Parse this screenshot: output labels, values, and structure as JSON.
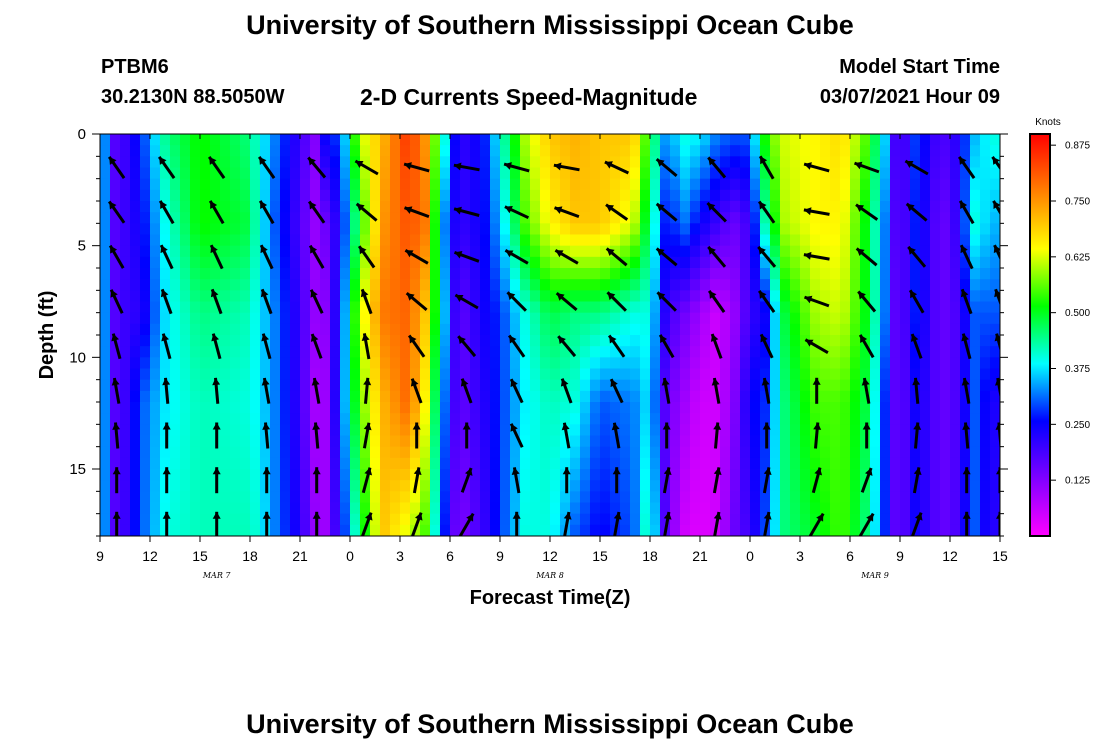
{
  "header": {
    "title_top": "University of Southern Mississippi Ocean Cube",
    "station_id": "PTBM6",
    "coords": "30.2130N 88.5050W",
    "plot_title": "2-D Currents Speed-Magnitude",
    "model_label": "Model Start Time",
    "model_time": "03/07/2021 Hour 09",
    "title_bottom": "University of Southern Mississippi Ocean Cube"
  },
  "chart_data": {
    "type": "heatmap",
    "title": "2-D Currents Speed-Magnitude",
    "xlabel": "Forecast Time(Z)",
    "ylabel": "Depth (ft)",
    "x_tick_labels": [
      "9",
      "12",
      "15",
      "18",
      "21",
      "0",
      "3",
      "6",
      "9",
      "12",
      "15",
      "18",
      "21",
      "0",
      "3",
      "6",
      "9",
      "12",
      "15"
    ],
    "x_range_hours": [
      0,
      54
    ],
    "date_labels": [
      {
        "text": "MAR  7",
        "hour": 7
      },
      {
        "text": "MAR  8",
        "hour": 27
      },
      {
        "text": "MAR  9",
        "hour": 46.5
      }
    ],
    "y_ticks": [
      0,
      5,
      10,
      15
    ],
    "ylim": [
      0,
      18
    ],
    "y_inverted": true,
    "colorbar": {
      "unit": "Knots",
      "range": [
        0,
        0.9
      ],
      "tick_labels": [
        "0.125",
        "0.250",
        "0.375",
        "0.500",
        "0.625",
        "0.750",
        "0.875"
      ],
      "colors": [
        "#ff00ff",
        "#8000ff",
        "#0000ff",
        "#00ffff",
        "#00ff00",
        "#ffff00",
        "#ff8000",
        "#ff0000"
      ]
    },
    "speed_field": {
      "hour_keys": [
        0,
        1,
        1.5,
        2.5,
        4,
        6,
        9,
        9.5,
        10.5,
        12,
        13,
        13.5,
        14.5,
        15.5,
        17,
        18.5,
        19.5,
        20.5,
        21.5,
        23,
        24,
        25.5,
        27,
        28.5,
        30,
        32,
        33,
        34,
        35,
        36,
        37,
        38,
        39,
        40,
        41,
        43,
        44.5,
        46,
        47,
        47.5,
        48,
        49,
        50,
        51,
        52.5,
        53.5,
        54
      ],
      "depth_keys": [
        0,
        4,
        8,
        12,
        18
      ],
      "grid": [
        [
          0.4,
          0.4,
          0.4,
          0.4,
          0.4
        ],
        [
          0.15,
          0.15,
          0.15,
          0.15,
          0.15
        ],
        [
          0.2,
          0.2,
          0.2,
          0.2,
          0.2
        ],
        [
          0.28,
          0.25,
          0.22,
          0.3,
          0.3
        ],
        [
          0.45,
          0.4,
          0.38,
          0.38,
          0.4
        ],
        [
          0.52,
          0.52,
          0.45,
          0.42,
          0.42
        ],
        [
          0.45,
          0.48,
          0.42,
          0.4,
          0.42
        ],
        [
          0.4,
          0.4,
          0.38,
          0.38,
          0.4
        ],
        [
          0.32,
          0.3,
          0.32,
          0.32,
          0.32
        ],
        [
          0.2,
          0.18,
          0.2,
          0.2,
          0.22
        ],
        [
          0.12,
          0.1,
          0.1,
          0.08,
          0.1
        ],
        [
          0.25,
          0.15,
          0.12,
          0.1,
          0.1
        ],
        [
          0.3,
          0.25,
          0.28,
          0.3,
          0.25
        ],
        [
          0.6,
          0.5,
          0.6,
          0.55,
          0.45
        ],
        [
          0.72,
          0.75,
          0.78,
          0.72,
          0.7
        ],
        [
          0.85,
          0.82,
          0.8,
          0.8,
          0.62
        ],
        [
          0.75,
          0.78,
          0.7,
          0.65,
          0.55
        ],
        [
          0.45,
          0.35,
          0.4,
          0.35,
          0.3
        ],
        [
          0.2,
          0.2,
          0.15,
          0.15,
          0.12
        ],
        [
          0.26,
          0.25,
          0.24,
          0.22,
          0.2
        ],
        [
          0.4,
          0.35,
          0.28,
          0.28,
          0.28
        ],
        [
          0.6,
          0.55,
          0.4,
          0.38,
          0.4
        ],
        [
          0.7,
          0.65,
          0.48,
          0.42,
          0.4
        ],
        [
          0.72,
          0.7,
          0.45,
          0.4,
          0.3
        ],
        [
          0.7,
          0.7,
          0.45,
          0.3,
          0.25
        ],
        [
          0.7,
          0.62,
          0.4,
          0.32,
          0.3
        ],
        [
          0.5,
          0.45,
          0.4,
          0.38,
          0.45
        ],
        [
          0.32,
          0.25,
          0.2,
          0.15,
          0.15
        ],
        [
          0.4,
          0.32,
          0.15,
          0.1,
          0.05
        ],
        [
          0.38,
          0.25,
          0.1,
          0.05,
          0.03
        ],
        [
          0.32,
          0.2,
          0.05,
          0.05,
          0.05
        ],
        [
          0.3,
          0.15,
          0.1,
          0.12,
          0.15
        ],
        [
          0.3,
          0.2,
          0.2,
          0.25,
          0.2
        ],
        [
          0.55,
          0.45,
          0.25,
          0.28,
          0.3
        ],
        [
          0.62,
          0.6,
          0.48,
          0.45,
          0.45
        ],
        [
          0.65,
          0.65,
          0.6,
          0.55,
          0.5
        ],
        [
          0.68,
          0.65,
          0.62,
          0.55,
          0.55
        ],
        [
          0.55,
          0.5,
          0.5,
          0.48,
          0.45
        ],
        [
          0.4,
          0.35,
          0.35,
          0.3,
          0.3
        ],
        [
          0.22,
          0.2,
          0.18,
          0.18,
          0.18
        ],
        [
          0.15,
          0.15,
          0.15,
          0.15,
          0.15
        ],
        [
          0.3,
          0.28,
          0.28,
          0.25,
          0.25
        ],
        [
          0.2,
          0.18,
          0.18,
          0.18,
          0.18
        ],
        [
          0.18,
          0.15,
          0.15,
          0.15,
          0.15
        ],
        [
          0.35,
          0.4,
          0.3,
          0.3,
          0.3
        ],
        [
          0.4,
          0.35,
          0.3,
          0.22,
          0.2
        ],
        [
          0.4,
          0.35,
          0.3,
          0.25,
          0.25
        ]
      ]
    },
    "arrow_field": {
      "hours": [
        1,
        4,
        7,
        10,
        13,
        16,
        19,
        22,
        25,
        28,
        31,
        34,
        37,
        40,
        43,
        46,
        49,
        52,
        54
      ],
      "depths_ft": [
        1.5,
        3.5,
        5.5,
        7.5,
        9.5,
        11.5,
        13.5,
        15.5,
        17.5
      ],
      "directions_deg": [
        [
          125,
          125,
          120,
          115,
          105,
          100,
          95,
          90,
          90
        ],
        [
          125,
          120,
          115,
          110,
          105,
          95,
          90,
          90,
          90
        ],
        [
          125,
          120,
          115,
          110,
          105,
          95,
          90,
          90,
          90
        ],
        [
          125,
          120,
          115,
          110,
          105,
          100,
          95,
          90,
          90
        ],
        [
          130,
          125,
          120,
          115,
          110,
          100,
          95,
          90,
          90
        ],
        [
          150,
          140,
          125,
          110,
          100,
          85,
          80,
          75,
          70
        ],
        [
          165,
          160,
          150,
          140,
          125,
          110,
          90,
          80,
          70
        ],
        [
          170,
          165,
          160,
          150,
          130,
          110,
          90,
          70,
          60
        ],
        [
          165,
          155,
          150,
          135,
          125,
          115,
          115,
          100,
          90
        ],
        [
          170,
          160,
          150,
          140,
          130,
          110,
          100,
          90,
          80
        ],
        [
          155,
          145,
          140,
          135,
          125,
          115,
          100,
          90,
          80
        ],
        [
          140,
          140,
          140,
          135,
          120,
          100,
          90,
          80,
          80
        ],
        [
          130,
          135,
          130,
          125,
          110,
          100,
          85,
          80,
          80
        ],
        [
          120,
          125,
          130,
          125,
          115,
          100,
          90,
          80,
          80
        ],
        [
          165,
          170,
          170,
          160,
          150,
          90,
          85,
          75,
          60
        ],
        [
          160,
          145,
          140,
          130,
          120,
          100,
          90,
          70,
          60
        ],
        [
          150,
          140,
          130,
          120,
          110,
          95,
          85,
          80,
          70
        ],
        [
          125,
          120,
          115,
          110,
          105,
          100,
          95,
          90,
          90
        ],
        [
          125,
          120,
          115,
          110,
          105,
          100,
          95,
          90,
          90
        ]
      ]
    }
  }
}
